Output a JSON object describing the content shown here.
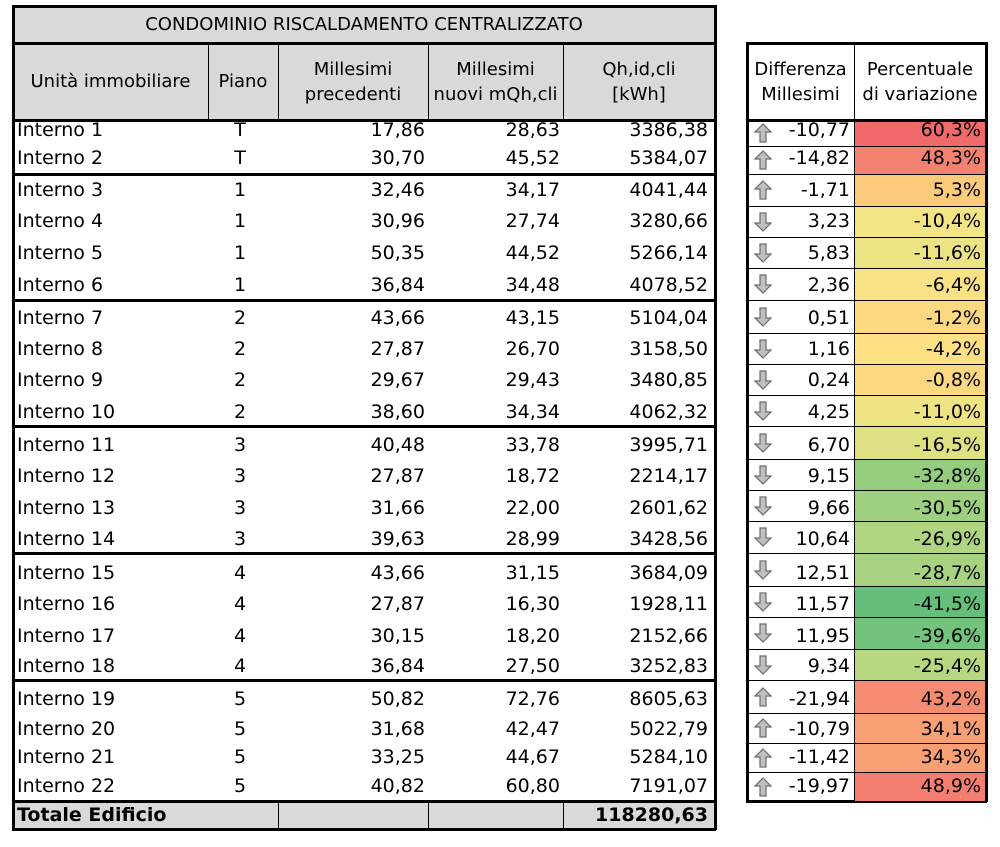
{
  "title": "CONDOMINIO RISCALDAMENTO CENTRALIZZATO",
  "headers": {
    "unit": "Unità immobiliare",
    "floor": "Piano",
    "old": "Millesimi\nprecedenti",
    "new": "Millesimi\nnuovi mQh,cli",
    "qh": "Qh,id,cli\n[kWh]",
    "diff": "Differenza\nMillesimi",
    "perc": "Percentuale\ndi variazione"
  },
  "rows": [
    {
      "unit": "Interno 1",
      "floor": "T",
      "old": "17,86",
      "new": "28,63",
      "qh": "3386,38",
      "diff": "-10,77",
      "perc": "60,3%",
      "dir": "up",
      "color": "#f16a6a"
    },
    {
      "unit": "Interno 2",
      "floor": "T",
      "old": "30,70",
      "new": "45,52",
      "qh": "5384,07",
      "diff": "-14,82",
      "perc": "48,3%",
      "dir": "up",
      "color": "#f48270"
    },
    {
      "unit": "Interno 3",
      "floor": "1",
      "old": "32,46",
      "new": "34,17",
      "qh": "4041,44",
      "diff": "-1,71",
      "perc": "5,3%",
      "dir": "up",
      "color": "#fbcb7b"
    },
    {
      "unit": "Interno 4",
      "floor": "1",
      "old": "30,96",
      "new": "27,74",
      "qh": "3280,66",
      "diff": "3,23",
      "perc": "-10,4%",
      "dir": "down",
      "color": "#f3e585"
    },
    {
      "unit": "Interno 5",
      "floor": "1",
      "old": "50,35",
      "new": "44,52",
      "qh": "5266,14",
      "diff": "5,83",
      "perc": "-11,6%",
      "dir": "down",
      "color": "#ece484"
    },
    {
      "unit": "Interno 6",
      "floor": "1",
      "old": "36,84",
      "new": "34,48",
      "qh": "4078,52",
      "diff": "2,36",
      "perc": "-6,4%",
      "dir": "down",
      "color": "#f9e285"
    },
    {
      "unit": "Interno 7",
      "floor": "2",
      "old": "43,66",
      "new": "43,15",
      "qh": "5104,04",
      "diff": "0,51",
      "perc": "-1,2%",
      "dir": "down",
      "color": "#fcd881"
    },
    {
      "unit": "Interno 8",
      "floor": "2",
      "old": "27,87",
      "new": "26,70",
      "qh": "3158,50",
      "diff": "1,16",
      "perc": "-4,2%",
      "dir": "down",
      "color": "#fde083"
    },
    {
      "unit": "Interno 9",
      "floor": "2",
      "old": "29,67",
      "new": "29,43",
      "qh": "3480,85",
      "diff": "0,24",
      "perc": "-0,8%",
      "dir": "down",
      "color": "#fcd881"
    },
    {
      "unit": "Interno 10",
      "floor": "2",
      "old": "38,60",
      "new": "34,34",
      "qh": "4062,32",
      "diff": "4,25",
      "perc": "-11,0%",
      "dir": "down",
      "color": "#efe483"
    },
    {
      "unit": "Interno 11",
      "floor": "3",
      "old": "40,48",
      "new": "33,78",
      "qh": "3995,71",
      "diff": "6,70",
      "perc": "-16,5%",
      "dir": "down",
      "color": "#dde182"
    },
    {
      "unit": "Interno 12",
      "floor": "3",
      "old": "27,87",
      "new": "18,72",
      "qh": "2214,17",
      "diff": "9,15",
      "perc": "-32,8%",
      "dir": "down",
      "color": "#94cd7e"
    },
    {
      "unit": "Interno 13",
      "floor": "3",
      "old": "31,66",
      "new": "22,00",
      "qh": "2601,62",
      "diff": "9,66",
      "perc": "-30,5%",
      "dir": "down",
      "color": "#9ed07f"
    },
    {
      "unit": "Interno 14",
      "floor": "3",
      "old": "39,63",
      "new": "28,99",
      "qh": "3428,56",
      "diff": "10,64",
      "perc": "-26,9%",
      "dir": "down",
      "color": "#b0d580"
    },
    {
      "unit": "Interno 15",
      "floor": "4",
      "old": "43,66",
      "new": "31,15",
      "qh": "3684,09",
      "diff": "12,51",
      "perc": "-28,7%",
      "dir": "down",
      "color": "#a7d27f"
    },
    {
      "unit": "Interno 16",
      "floor": "4",
      "old": "27,87",
      "new": "16,30",
      "qh": "1928,11",
      "diff": "11,57",
      "perc": "-41,5%",
      "dir": "down",
      "color": "#65bf7b"
    },
    {
      "unit": "Interno 17",
      "floor": "4",
      "old": "30,15",
      "new": "18,20",
      "qh": "2152,66",
      "diff": "11,95",
      "perc": "-39,6%",
      "dir": "down",
      "color": "#72c37c"
    },
    {
      "unit": "Interno 18",
      "floor": "4",
      "old": "36,84",
      "new": "27,50",
      "qh": "3252,83",
      "diff": "9,34",
      "perc": "-25,4%",
      "dir": "down",
      "color": "#b7d780"
    },
    {
      "unit": "Interno 19",
      "floor": "5",
      "old": "50,82",
      "new": "72,76",
      "qh": "8605,63",
      "diff": "-21,94",
      "perc": "43,2%",
      "dir": "up",
      "color": "#f58c72"
    },
    {
      "unit": "Interno 20",
      "floor": "5",
      "old": "31,68",
      "new": "42,47",
      "qh": "5022,79",
      "diff": "-10,79",
      "perc": "34,1%",
      "dir": "up",
      "color": "#f8a074"
    },
    {
      "unit": "Interno 21",
      "floor": "5",
      "old": "33,25",
      "new": "44,67",
      "qh": "5284,10",
      "diff": "-11,42",
      "perc": "34,3%",
      "dir": "up",
      "color": "#f89f74"
    },
    {
      "unit": "Interno 22",
      "floor": "5",
      "old": "40,82",
      "new": "60,80",
      "qh": "7191,07",
      "diff": "-19,97",
      "perc": "48,9%",
      "dir": "up",
      "color": "#f47f70"
    }
  ],
  "total": {
    "label": "Totale Edificio",
    "value": "118280,63"
  },
  "colors": {
    "header_bg": "#d9d9d9",
    "arrow_fill": "#bfbfbf",
    "arrow_stroke": "#6b6b6b",
    "border": "#000000"
  }
}
